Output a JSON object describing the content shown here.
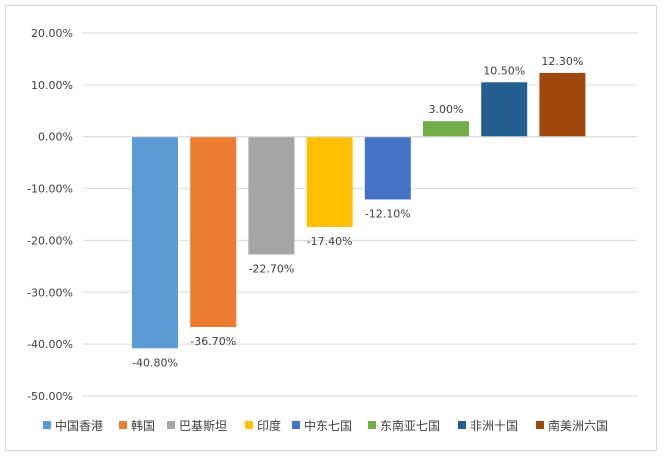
{
  "chart_data": {
    "type": "bar",
    "categories": [
      "中国香港",
      "韩国",
      "巴基斯坦",
      "印度",
      "中东七国",
      "东南亚七国",
      "非洲十国",
      "南美洲六国"
    ],
    "values": [
      -40.8,
      -36.7,
      -22.7,
      -17.4,
      -12.1,
      3.0,
      10.5,
      12.3
    ],
    "data_labels": [
      "-40.80%",
      "-36.70%",
      "-22.70%",
      "-17.40%",
      "-12.10%",
      "3.00%",
      "10.50%",
      "12.30%"
    ],
    "colors": [
      "#5b9bd5",
      "#ed7d31",
      "#a5a5a5",
      "#ffc000",
      "#4472c4",
      "#70ad47",
      "#255e91",
      "#9e480e"
    ],
    "y_ticks": [
      "20.00%",
      "10.00%",
      "0.00%",
      "-10.00%",
      "-20.00%",
      "-30.00%",
      "-40.00%",
      "-50.00%"
    ],
    "ylim": [
      -50,
      20
    ],
    "grid": true,
    "legend_position": "bottom"
  }
}
